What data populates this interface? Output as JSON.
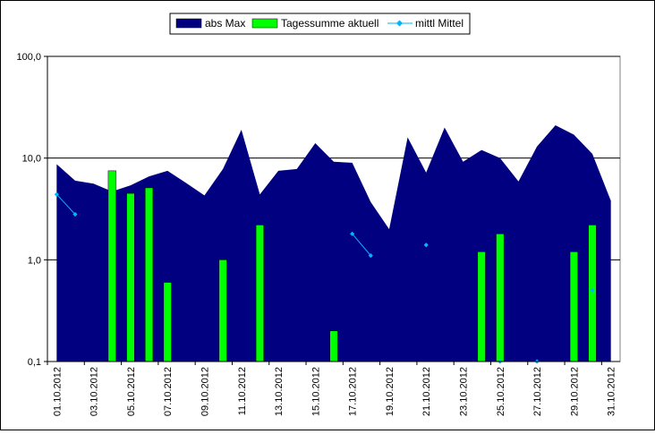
{
  "chart_data": {
    "type": "area",
    "title": "",
    "xlabel": "",
    "ylabel": "",
    "y_scale": "log",
    "ylim": [
      0.1,
      100
    ],
    "y_ticks": [
      "0,1",
      "1,0",
      "10,0",
      "100,0"
    ],
    "x_tick_labels": [
      "01.10.2012",
      "03.10.2012",
      "05.10.2012",
      "07.10.2012",
      "09.10.2012",
      "11.10.2012",
      "13.10.2012",
      "15.10.2012",
      "17.10.2012",
      "19.10.2012",
      "21.10.2012",
      "23.10.2012",
      "25.10.2012",
      "27.10.2012",
      "29.10.2012",
      "31.10.2012"
    ],
    "categories": [
      "01.10.2012",
      "02.10.2012",
      "03.10.2012",
      "04.10.2012",
      "05.10.2012",
      "06.10.2012",
      "07.10.2012",
      "08.10.2012",
      "09.10.2012",
      "10.10.2012",
      "11.10.2012",
      "12.10.2012",
      "13.10.2012",
      "14.10.2012",
      "15.10.2012",
      "16.10.2012",
      "17.10.2012",
      "18.10.2012",
      "19.10.2012",
      "20.10.2012",
      "21.10.2012",
      "22.10.2012",
      "23.10.2012",
      "24.10.2012",
      "25.10.2012",
      "26.10.2012",
      "27.10.2012",
      "28.10.2012",
      "29.10.2012",
      "30.10.2012",
      "31.10.2012"
    ],
    "legend_position": "top-center",
    "gridlines": "major horizontal",
    "series": [
      {
        "name": "abs Max",
        "kind": "area",
        "color": "#000080",
        "values": [
          8.7,
          6.0,
          5.6,
          4.7,
          5.4,
          6.6,
          7.5,
          5.7,
          4.3,
          7.8,
          19.0,
          4.4,
          7.5,
          7.8,
          14.0,
          9.2,
          9.0,
          3.7,
          2.0,
          16.0,
          7.2,
          20.0,
          9.2,
          12.0,
          10.0,
          5.9,
          13.0,
          21.0,
          17.0,
          11.0,
          3.8
        ]
      },
      {
        "name": "Tagessumme aktuell",
        "kind": "bar",
        "color": "#00ff00",
        "values": [
          null,
          null,
          null,
          7.5,
          4.5,
          5.1,
          0.6,
          null,
          null,
          1.0,
          null,
          2.2,
          null,
          null,
          null,
          0.2,
          null,
          null,
          null,
          null,
          null,
          null,
          null,
          1.2,
          1.8,
          null,
          null,
          null,
          1.2,
          2.2,
          null
        ]
      },
      {
        "name": "mittl Mittel",
        "kind": "line",
        "color": "#00b4ff",
        "values": [
          4.4,
          2.8,
          null,
          null,
          null,
          null,
          null,
          null,
          null,
          null,
          null,
          null,
          null,
          null,
          null,
          null,
          1.8,
          1.1,
          null,
          null,
          1.4,
          null,
          null,
          null,
          0.1,
          null,
          0.1,
          null,
          null,
          0.5,
          null
        ]
      }
    ]
  }
}
